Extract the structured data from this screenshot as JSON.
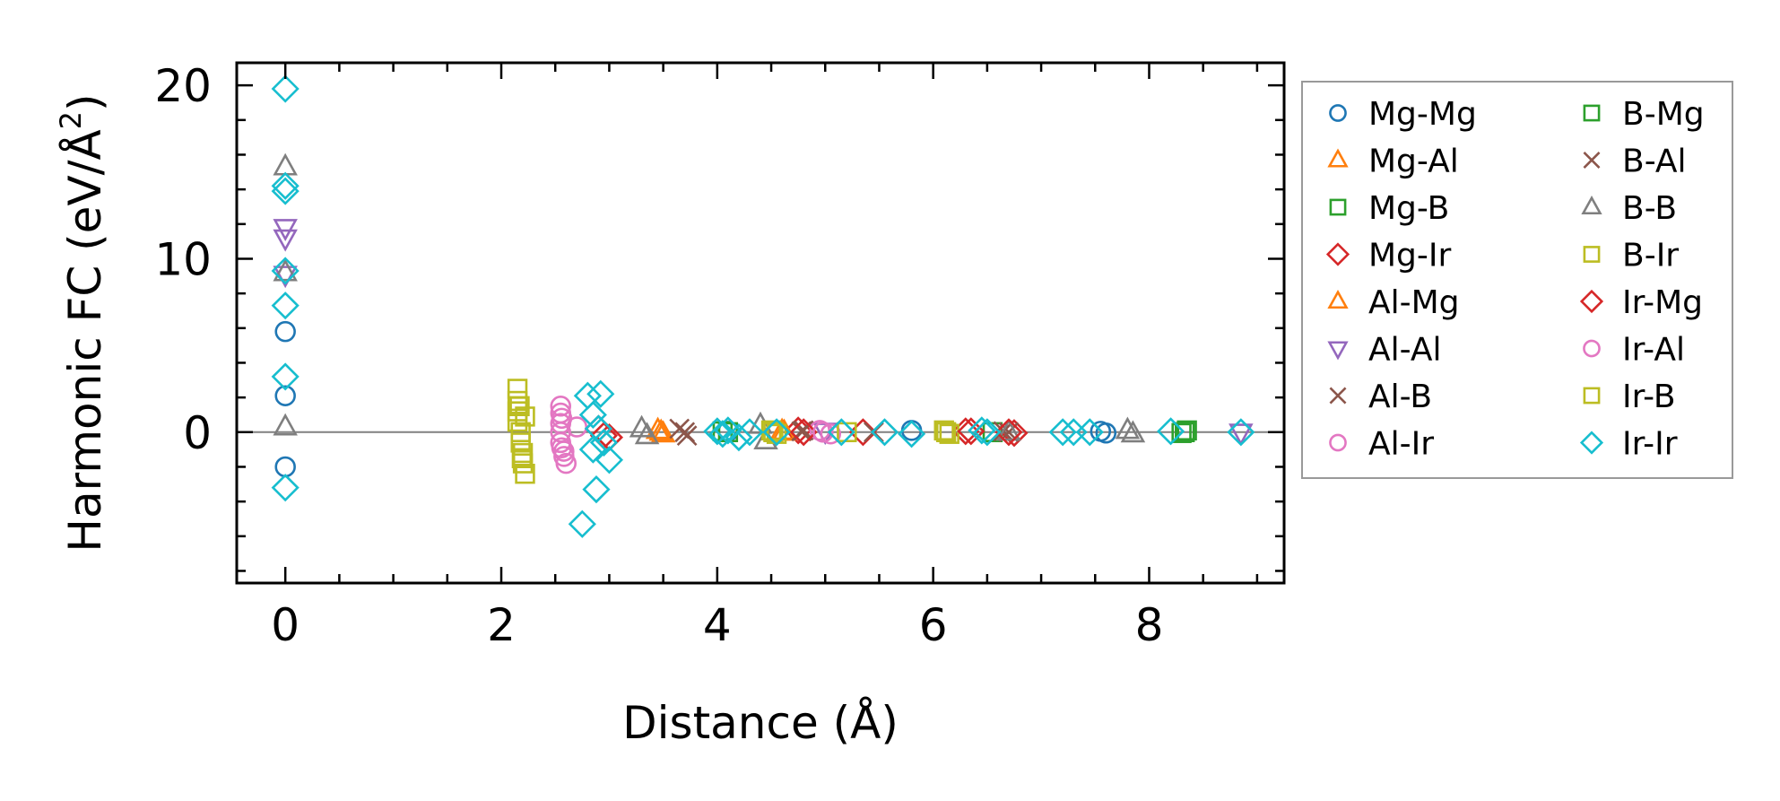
{
  "chart_data": {
    "type": "scatter",
    "title": "",
    "xlabel": "Distance (Å)",
    "ylabel": "Harmonic FC (eV/Å²)",
    "ylabel_parts": {
      "main": "Harmonic FC (eV/Å",
      "sup": "2",
      "close": ")"
    },
    "xlim": [
      -0.45,
      9.25
    ],
    "ylim": [
      -8.7,
      21.3
    ],
    "xticks": [
      0,
      2,
      4,
      6,
      8
    ],
    "xtick_labels": [
      "0",
      "2",
      "4",
      "6",
      "8"
    ],
    "yticks": [
      0,
      10,
      20
    ],
    "ytick_labels": [
      "0",
      "10",
      "20"
    ],
    "x_minor_step": 0.5,
    "y_minor_step": 2,
    "zero_line": true,
    "grid": false,
    "legend_position": "outside-right",
    "series": [
      {
        "name": "Mg-Mg",
        "marker": "circle",
        "color": "#1f77b4",
        "x": [
          0,
          0,
          0,
          7.55,
          7.6,
          5.8,
          4.1
        ],
        "y": [
          5.8,
          2.1,
          -2.0,
          0.05,
          -0.05,
          0.1,
          0.05
        ]
      },
      {
        "name": "Mg-Al",
        "marker": "triangle-up",
        "color": "#ff7f0e",
        "x": [
          3.45,
          3.5,
          4.6
        ],
        "y": [
          0.1,
          -0.1,
          0.05
        ]
      },
      {
        "name": "Mg-B",
        "marker": "square",
        "color": "#2ca02c",
        "x": [
          4.05,
          8.3,
          8.35,
          6.55
        ],
        "y": [
          0.05,
          -0.05,
          0.1,
          0.0
        ]
      },
      {
        "name": "Mg-Ir",
        "marker": "diamond",
        "color": "#d62728",
        "x": [
          2.9,
          3.0,
          4.75,
          5.35,
          6.3,
          6.75
        ],
        "y": [
          0.2,
          -0.3,
          0.1,
          0.0,
          0.05,
          -0.05
        ]
      },
      {
        "name": "Al-Mg",
        "marker": "triangle-up",
        "color": "#ff7f0e",
        "x": [
          3.48,
          4.62
        ],
        "y": [
          0.0,
          0.0
        ]
      },
      {
        "name": "Al-Al",
        "marker": "triangle-down",
        "color": "#9467bd",
        "x": [
          0,
          0,
          0,
          5.0,
          8.85
        ],
        "y": [
          11.8,
          11.2,
          9.1,
          0.05,
          0.0
        ]
      },
      {
        "name": "Al-B",
        "marker": "x",
        "color": "#8c564b",
        "x": [
          3.65,
          3.72,
          4.8,
          5.45,
          6.65
        ],
        "y": [
          0.2,
          -0.2,
          0.1,
          0.0,
          0.05
        ]
      },
      {
        "name": "Al-Ir",
        "marker": "circle",
        "color": "#e377c2",
        "x": [
          2.55,
          2.55,
          2.55,
          2.55,
          2.55,
          2.58,
          2.58,
          2.6,
          2.7,
          4.95,
          5.05
        ],
        "y": [
          1.5,
          1.1,
          0.5,
          0.0,
          -0.6,
          -1.1,
          -1.4,
          -1.8,
          0.3,
          0.1,
          -0.1
        ]
      },
      {
        "name": "B-Mg",
        "marker": "square",
        "color": "#2ca02c",
        "x": [
          4.1,
          8.33
        ],
        "y": [
          0.0,
          0.0
        ]
      },
      {
        "name": "B-Al",
        "marker": "x",
        "color": "#8c564b",
        "x": [
          3.7,
          4.78,
          6.7
        ],
        "y": [
          0.0,
          0.05,
          0.0
        ]
      },
      {
        "name": "B-B",
        "marker": "triangle-up",
        "color": "#7f7f7f",
        "x": [
          0,
          0,
          0,
          3.3,
          3.35,
          4.4,
          4.45,
          6.7,
          7.8,
          7.85
        ],
        "y": [
          15.3,
          9.2,
          0.3,
          0.2,
          -0.2,
          0.4,
          -0.5,
          0.0,
          0.1,
          -0.1
        ]
      },
      {
        "name": "B-Ir",
        "marker": "square",
        "color": "#bcbd22",
        "x": [
          2.15,
          2.15,
          2.15,
          2.15,
          2.18,
          2.18,
          2.2,
          2.2,
          2.22,
          2.22,
          4.5,
          4.55,
          6.1,
          6.15,
          5.2
        ],
        "y": [
          2.5,
          1.8,
          1.2,
          0.6,
          0.0,
          -0.6,
          -1.2,
          -1.8,
          -2.4,
          0.9,
          0.1,
          -0.1,
          0.1,
          -0.1,
          0.0
        ]
      },
      {
        "name": "Ir-Mg",
        "marker": "diamond",
        "color": "#d62728",
        "x": [
          2.95,
          4.8,
          6.35,
          6.7
        ],
        "y": [
          -0.2,
          0.0,
          0.05,
          0.0
        ]
      },
      {
        "name": "Ir-Al",
        "marker": "circle",
        "color": "#e377c2",
        "x": [
          2.56,
          2.56,
          4.98
        ],
        "y": [
          0.8,
          -0.9,
          0.0
        ]
      },
      {
        "name": "Ir-B",
        "marker": "square",
        "color": "#bcbd22",
        "x": [
          2.17,
          2.19,
          4.52,
          6.12
        ],
        "y": [
          1.5,
          -1.5,
          0.0,
          0.0
        ]
      },
      {
        "name": "Ir-Ir",
        "marker": "diamond",
        "color": "#17becf",
        "x": [
          0,
          0,
          0,
          0,
          0,
          0,
          0,
          2.75,
          2.8,
          2.85,
          2.9,
          2.95,
          3.0,
          2.88,
          2.92,
          2.85,
          4.0,
          4.05,
          4.1,
          4.2,
          4.3,
          4.55,
          5.15,
          5.55,
          5.8,
          6.45,
          6.5,
          7.2,
          7.3,
          7.45,
          8.2,
          8.85
        ],
        "y": [
          19.8,
          14.2,
          13.9,
          9.3,
          7.3,
          3.2,
          -3.2,
          -5.3,
          2.1,
          1.0,
          0.2,
          -0.6,
          -1.6,
          -3.3,
          2.2,
          -1.0,
          0.05,
          -0.1,
          0.1,
          -0.3,
          0.0,
          0.0,
          0.0,
          0.0,
          -0.1,
          0.1,
          0.0,
          0.0,
          0.0,
          0.0,
          0.05,
          0.0
        ]
      }
    ]
  }
}
